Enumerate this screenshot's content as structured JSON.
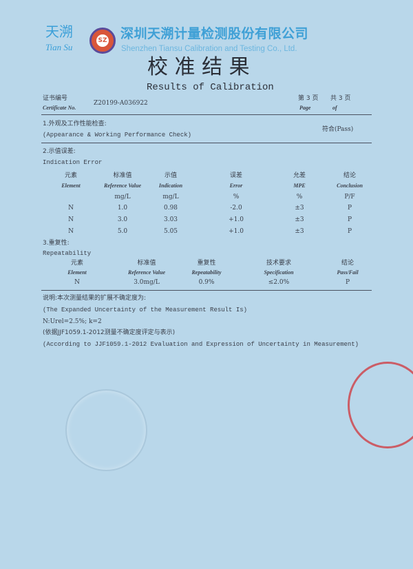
{
  "header": {
    "brand_cn": "天溯",
    "brand_en": "Tian Su",
    "company_cn": "深圳天溯计量检测股份有限公司",
    "company_en": "Shenzhen Tiansu Calibration and Testing Co., Ltd.",
    "logo_text": "SZ",
    "title_cn": "校 准 结 果",
    "title_en": "Results of Calibration",
    "cert_label_cn": "证书编号",
    "cert_label_en": "Certificate No.",
    "cert_no": "Z20199-A036922",
    "page_cn": "第 3 页",
    "total_cn": "共 3 页",
    "page_en": "Page",
    "of_en": "of"
  },
  "section1": {
    "title_cn": "1.外观及工作性能检查:",
    "title_en": "(Appearance & Working Performance Check)",
    "result": "符合(Pass)"
  },
  "section2": {
    "title_cn": "2.示值误差:",
    "title_en": "Indication Error",
    "headers_cn": [
      "元素",
      "标准值",
      "示值",
      "误差",
      "允差",
      "结论"
    ],
    "headers_en": [
      "Element",
      "Reference Value",
      "Indication",
      "Error",
      "MPE",
      "Conclusion"
    ],
    "units": [
      "",
      "mg/L",
      "mg/L",
      "%",
      "%",
      "P/F"
    ],
    "rows": [
      [
        "N",
        "1.0",
        "0.98",
        "-2.0",
        "±3",
        "P"
      ],
      [
        "N",
        "3.0",
        "3.03",
        "+1.0",
        "±3",
        "P"
      ],
      [
        "N",
        "5.0",
        "5.05",
        "+1.0",
        "±3",
        "P"
      ]
    ]
  },
  "section3": {
    "title_cn": "3.重复性:",
    "title_en": "Repeatability",
    "headers_cn": [
      "元素",
      "标准值",
      "重复性",
      "技术要求",
      "结论"
    ],
    "headers_en": [
      "Element",
      "Reference Value",
      "Repeatability",
      "Specification",
      "Pass/Fail"
    ],
    "row": [
      "N",
      "3.0mg/L",
      "0.9%",
      "≤2.0%",
      "P"
    ]
  },
  "notes": {
    "line1": "说明:本次测量结果的扩展不确定度为:",
    "line2": "(The Expanded Uncertainty of the Measurement Result Is)",
    "line3": "N:Urel=2.5%;  k=2",
    "line4": "(依据JJF1059.1-2012测量不确定度评定与表示)",
    "line5": "(According to JJF1059.1-2012 Evaluation and Expression of Uncertainty in Measurement)"
  },
  "colors": {
    "paper": "#b9d7ea",
    "brand": "#3fa0d6",
    "stamp": "#d2343a"
  }
}
